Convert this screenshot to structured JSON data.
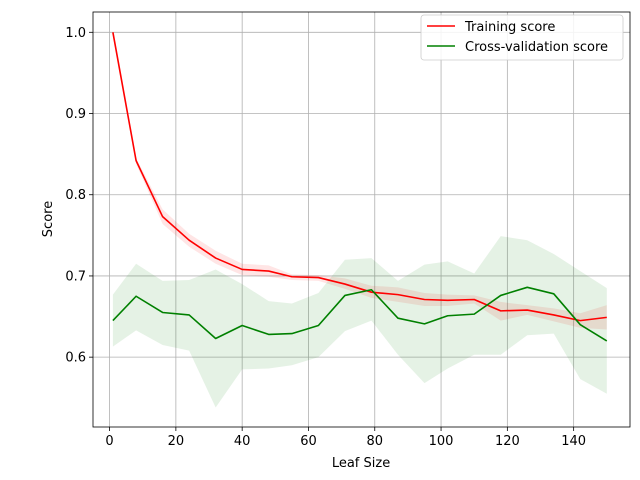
{
  "chart_data": {
    "type": "line",
    "xlabel": "Leaf Size",
    "ylabel": "Score",
    "xlim": [
      -5,
      157
    ],
    "ylim": [
      0.514,
      1.025
    ],
    "xticks": [
      0,
      20,
      40,
      60,
      80,
      100,
      120,
      140
    ],
    "yticks": [
      0.6,
      0.7,
      0.8,
      0.9,
      1.0
    ],
    "ytick_labels": [
      "0.6",
      "0.7",
      "0.8",
      "0.9",
      "1.0"
    ],
    "grid": true,
    "legend_position": "top-right",
    "x": [
      1,
      8,
      16,
      24,
      32,
      40,
      48,
      55,
      63,
      71,
      79,
      87,
      95,
      102,
      110,
      118,
      126,
      134,
      142,
      150
    ],
    "series": [
      {
        "name": "Training score",
        "color": "#ff0000",
        "values": [
          1.0,
          0.842,
          0.773,
          0.744,
          0.722,
          0.708,
          0.706,
          0.699,
          0.698,
          0.69,
          0.68,
          0.677,
          0.671,
          0.67,
          0.671,
          0.657,
          0.658,
          0.652,
          0.645,
          0.649
        ],
        "band_upper": [
          1.0,
          0.845,
          0.782,
          0.752,
          0.731,
          0.715,
          0.713,
          0.702,
          0.701,
          0.697,
          0.688,
          0.686,
          0.679,
          0.677,
          0.676,
          0.668,
          0.664,
          0.66,
          0.654,
          0.664
        ],
        "band_lower": [
          1.0,
          0.838,
          0.764,
          0.736,
          0.715,
          0.701,
          0.699,
          0.695,
          0.694,
          0.684,
          0.673,
          0.668,
          0.663,
          0.663,
          0.666,
          0.645,
          0.652,
          0.644,
          0.636,
          0.634
        ]
      },
      {
        "name": "Cross-validation score",
        "color": "#008000",
        "values": [
          0.645,
          0.675,
          0.655,
          0.652,
          0.623,
          0.639,
          0.628,
          0.629,
          0.639,
          0.676,
          0.683,
          0.648,
          0.641,
          0.651,
          0.653,
          0.676,
          0.686,
          0.678,
          0.64,
          0.62
        ],
        "band_upper": [
          0.677,
          0.715,
          0.694,
          0.695,
          0.708,
          0.69,
          0.669,
          0.666,
          0.679,
          0.72,
          0.722,
          0.694,
          0.714,
          0.718,
          0.703,
          0.749,
          0.744,
          0.727,
          0.706,
          0.685
        ],
        "band_lower": [
          0.613,
          0.633,
          0.615,
          0.608,
          0.538,
          0.585,
          0.586,
          0.59,
          0.6,
          0.632,
          0.645,
          0.603,
          0.568,
          0.586,
          0.603,
          0.603,
          0.627,
          0.629,
          0.573,
          0.555
        ]
      }
    ]
  }
}
